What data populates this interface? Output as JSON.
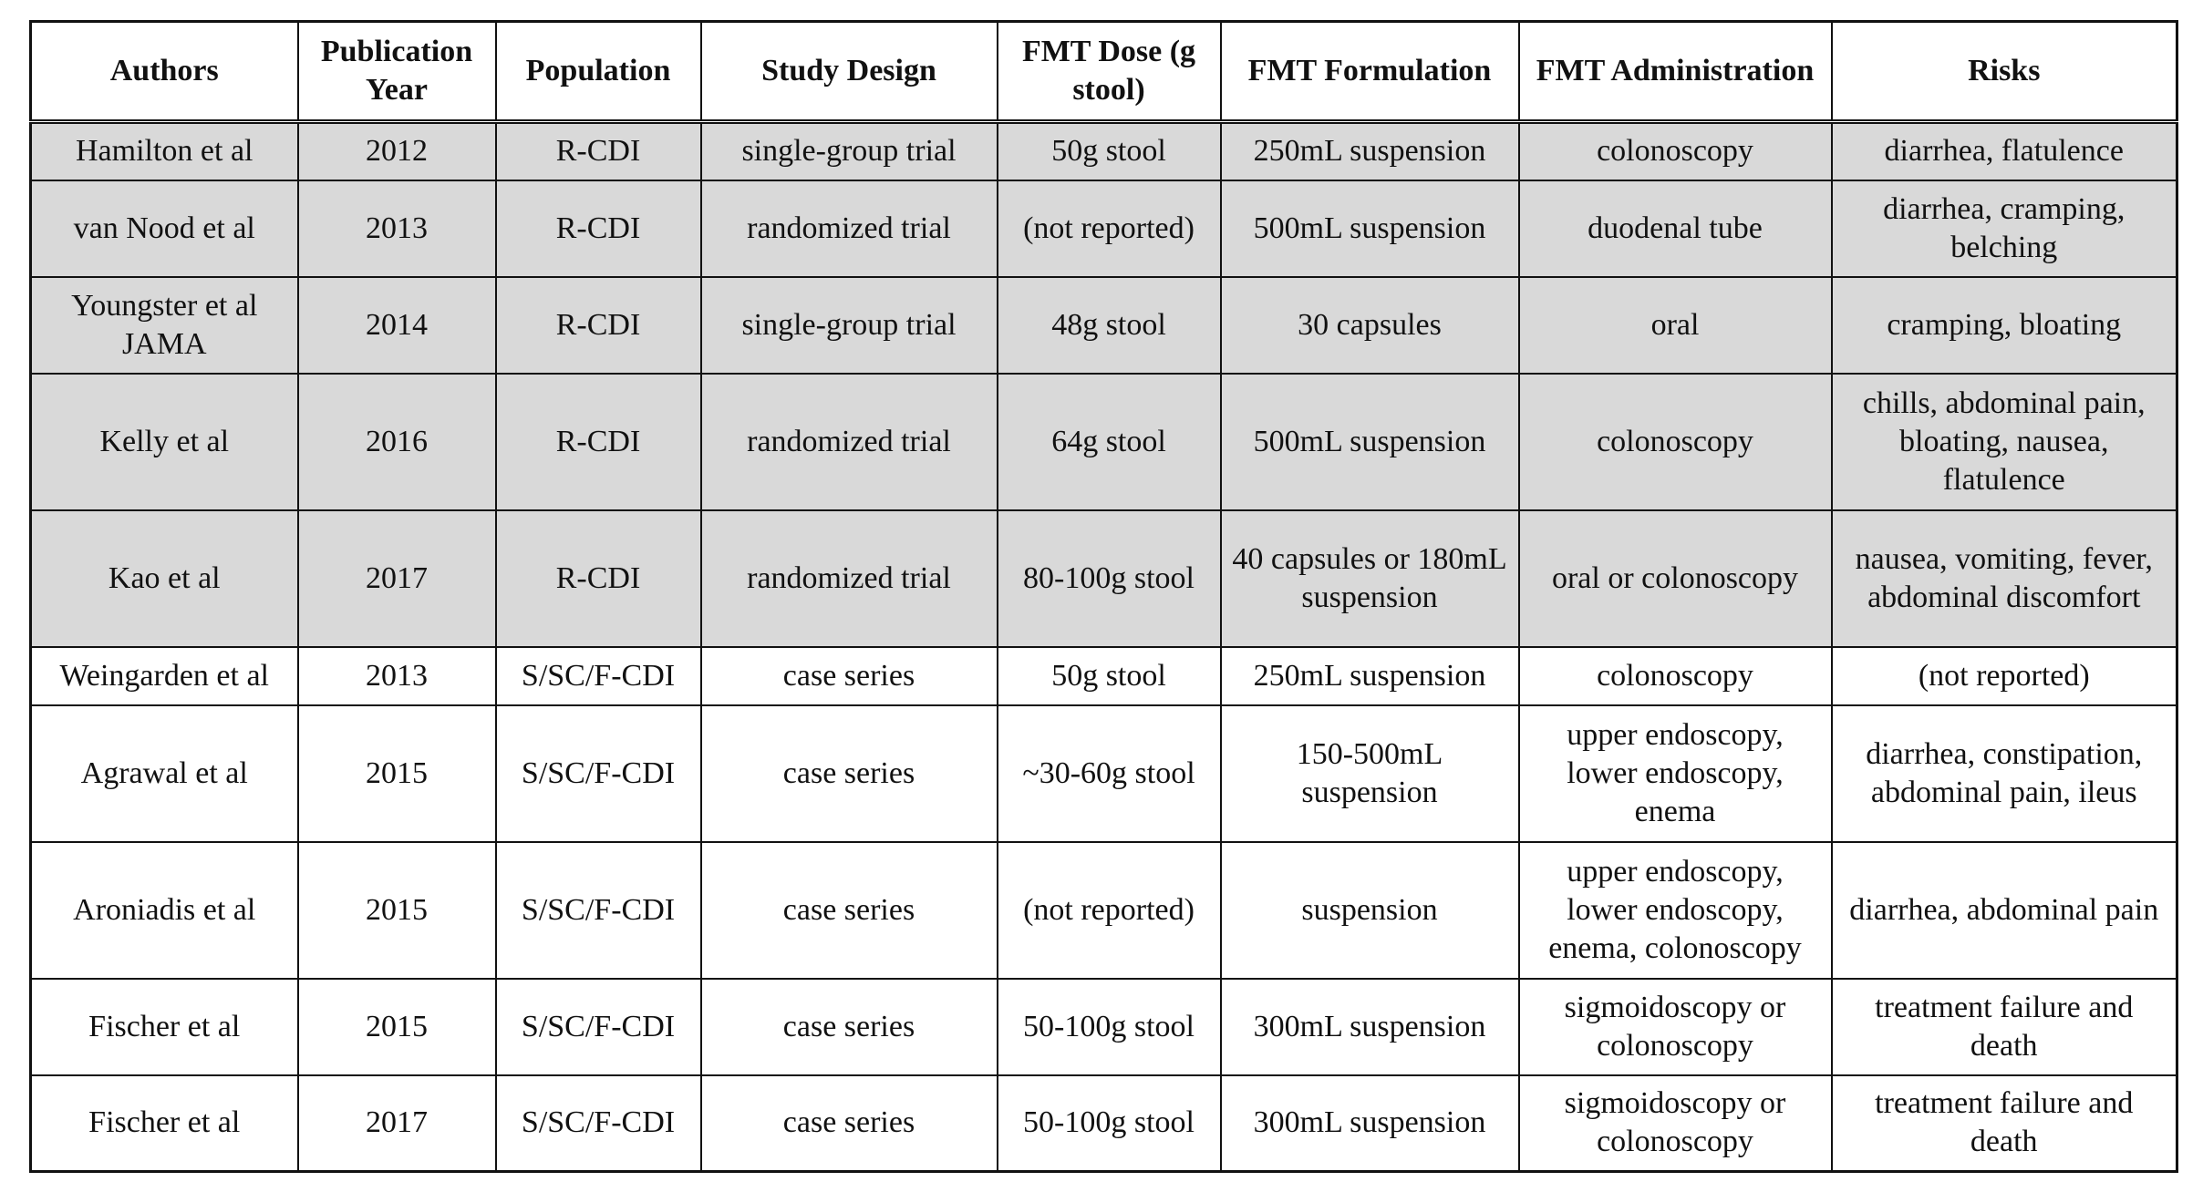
{
  "columns": [
    "Authors",
    "Publication Year",
    "Population",
    "Study Design",
    "FMT Dose (g stool)",
    "FMT Formulation",
    "FMT Administration",
    "Risks"
  ],
  "rows": [
    {
      "authors": "Hamilton et al",
      "year": "2012",
      "population": "R-CDI",
      "design": "single-group trial",
      "dose": "50g stool",
      "formulation": "250mL suspension",
      "administration": "colonoscopy",
      "risks": "diarrhea, flatulence",
      "shaded": true,
      "height": 64
    },
    {
      "authors": "van Nood et al",
      "year": "2013",
      "population": "R-CDI",
      "design": "randomized trial",
      "dose": "(not reported)",
      "formulation": "500mL suspension",
      "administration": "duodenal tube",
      "risks": "diarrhea, cramping, belching",
      "shaded": true,
      "height": 106
    },
    {
      "authors": "Youngster et al JAMA",
      "year": "2014",
      "population": "R-CDI",
      "design": "single-group trial",
      "dose": "48g stool",
      "formulation": "30 capsules",
      "administration": "oral",
      "risks": "cramping, bloating",
      "shaded": true,
      "height": 106
    },
    {
      "authors": "Kelly et al",
      "year": "2016",
      "population": "R-CDI",
      "design": "randomized trial",
      "dose": "64g stool",
      "formulation": "500mL suspension",
      "administration": "colonoscopy",
      "risks": "chills, abdominal pain, bloating, nausea, flatulence",
      "shaded": true,
      "height": 150
    },
    {
      "authors": "Kao et al",
      "year": "2017",
      "population": "R-CDI",
      "design": "randomized trial",
      "dose": "80-100g stool",
      "formulation": "40 capsules or 180mL suspension",
      "administration": "oral or colonoscopy",
      "risks": "nausea, vomiting, fever, abdominal discomfort",
      "shaded": true,
      "height": 150
    },
    {
      "authors": "Weingarden et al",
      "year": "2013",
      "population": "S/SC/F-CDI",
      "design": "case series",
      "dose": "50g stool",
      "formulation": "250mL suspension",
      "administration": "colonoscopy",
      "risks": "(not reported)",
      "shaded": false,
      "height": 64
    },
    {
      "authors": "Agrawal et al",
      "year": "2015",
      "population": "S/SC/F-CDI",
      "design": "case series",
      "dose": "~30-60g stool",
      "formulation": "150-500mL suspension",
      "administration": "upper endoscopy, lower endoscopy, enema",
      "risks": "diarrhea, constipation, abdominal pain, ileus",
      "shaded": false,
      "height": 150
    },
    {
      "authors": "Aroniadis et al",
      "year": "2015",
      "population": "S/SC/F-CDI",
      "design": "case series",
      "dose": "(not reported)",
      "formulation": "suspension",
      "administration": "upper endoscopy, lower endoscopy, enema, colonoscopy",
      "risks": "diarrhea, abdominal pain",
      "shaded": false,
      "height": 150
    },
    {
      "authors": "Fischer et al",
      "year": "2015",
      "population": "S/SC/F-CDI",
      "design": "case series",
      "dose": "50-100g stool",
      "formulation": "300mL suspension",
      "administration": "sigmoidoscopy or colonoscopy",
      "risks": "treatment failure and death",
      "shaded": false,
      "height": 106
    },
    {
      "authors": "Fischer et al",
      "year": "2017",
      "population": "S/SC/F-CDI",
      "design": "case series",
      "dose": "50-100g stool",
      "formulation": "300mL suspension",
      "administration": "sigmoidoscopy or colonoscopy",
      "risks": "treatment failure and death",
      "shaded": false,
      "height": 106
    }
  ]
}
